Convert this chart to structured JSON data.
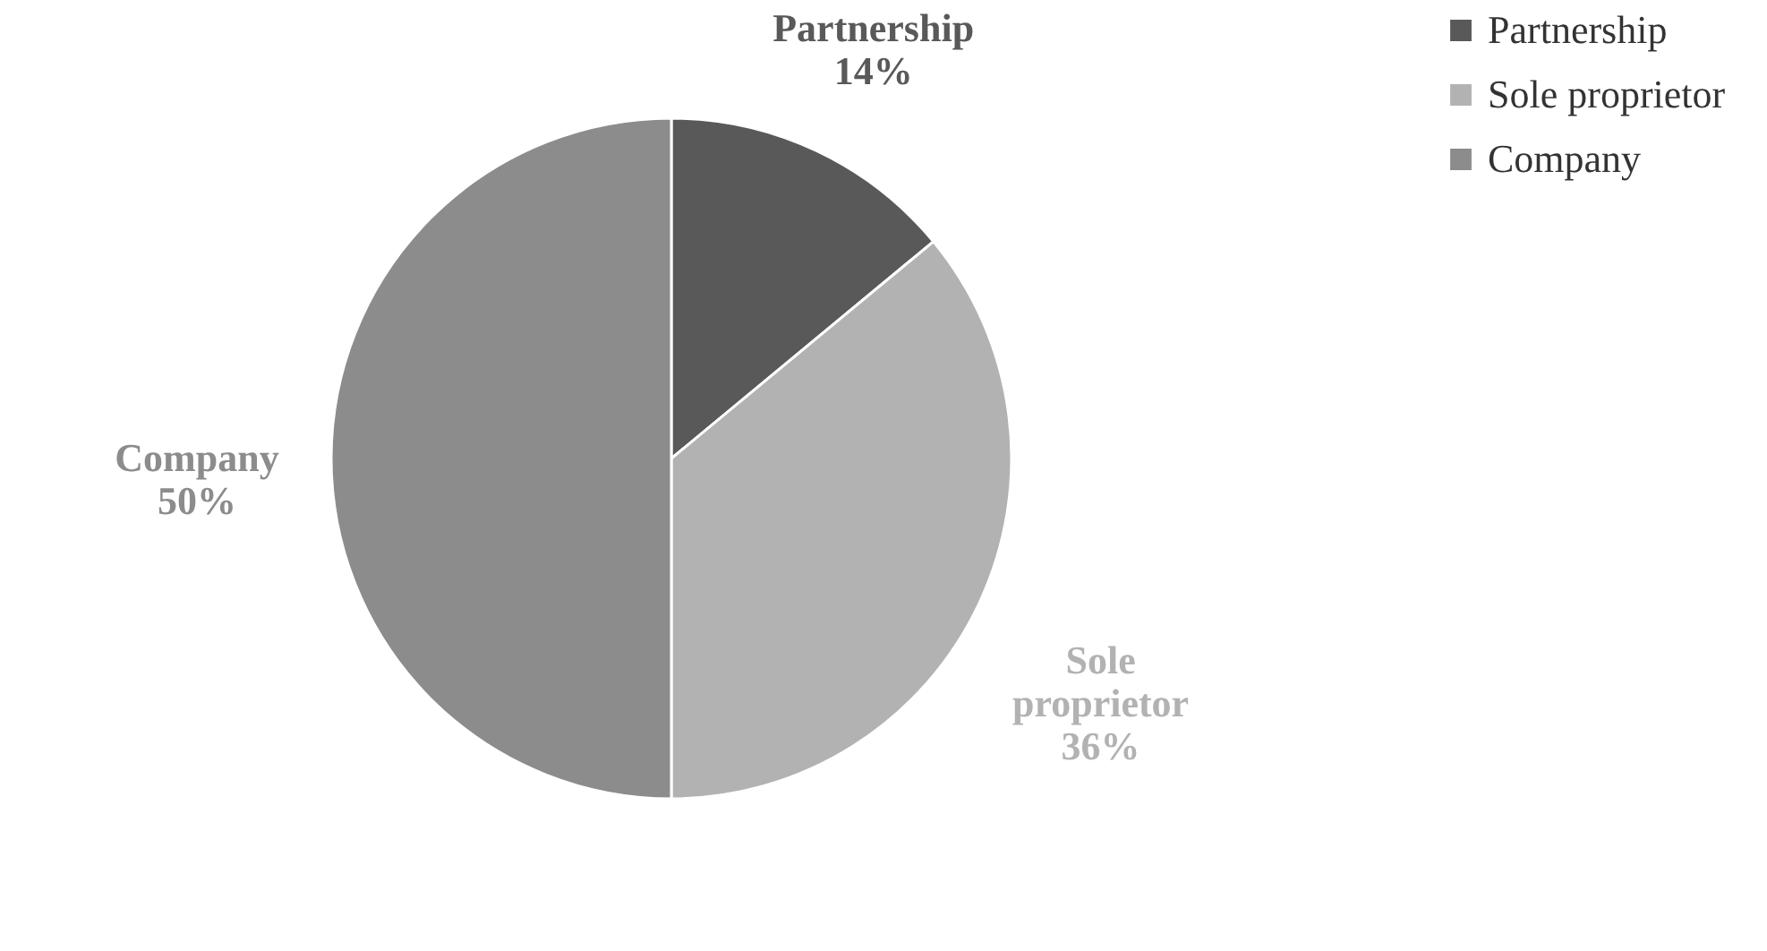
{
  "chart_data": {
    "type": "pie",
    "categories": [
      "Partnership",
      "Sole proprietor",
      "Company"
    ],
    "values": [
      14,
      36,
      50
    ],
    "colors": [
      "#595959",
      "#b2b2b2",
      "#8c8c8c"
    ],
    "value_labels": [
      "14%",
      "36%",
      "50%"
    ],
    "legend": "right"
  }
}
